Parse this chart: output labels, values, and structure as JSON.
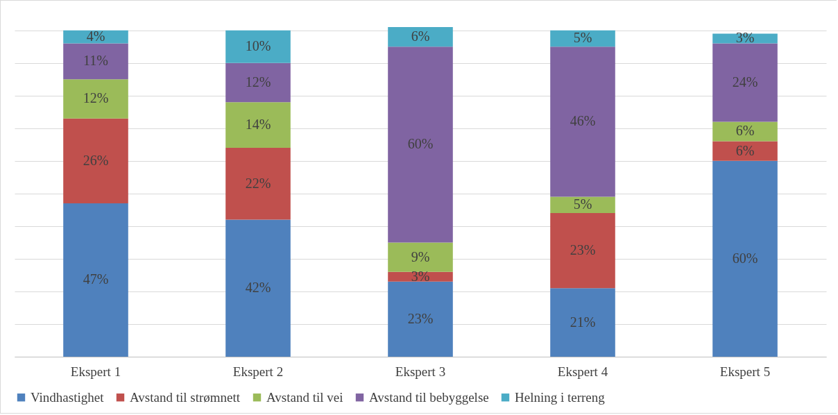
{
  "chart_data": {
    "type": "bar",
    "stacked": true,
    "grid": "y",
    "tick_labels": "x",
    "legend": "bottom",
    "categories": [
      "Ekspert 1",
      "Ekspert 2",
      "Ekspert 3",
      "Ekspert 4",
      "Ekspert 5"
    ],
    "series": [
      {
        "name": "Vindhastighet",
        "color": "#4f81bd",
        "values": [
          47,
          42,
          23,
          21,
          60
        ],
        "value_labels": [
          "47%",
          "42%",
          "23%",
          "21%",
          "60%"
        ]
      },
      {
        "name": "Avstand til strømnett",
        "color": "#c0504d",
        "values": [
          26,
          22,
          3,
          23,
          6
        ],
        "value_labels": [
          "26%",
          "22%",
          "3%",
          "23%",
          "6%"
        ]
      },
      {
        "name": "Avstand til vei",
        "color": "#9bbb59",
        "values": [
          12,
          14,
          9,
          5,
          6
        ],
        "value_labels": [
          "12%",
          "14%",
          "9%",
          "5%",
          "6%"
        ]
      },
      {
        "name": "Avstand til bebyggelse",
        "color": "#8064a2",
        "values": [
          11,
          12,
          60,
          46,
          24
        ],
        "value_labels": [
          "11%",
          "12%",
          "60%",
          "46%",
          "24%"
        ]
      },
      {
        "name": "Helning i terreng",
        "color": "#4bacc6",
        "values": [
          4,
          10,
          6,
          5,
          3
        ],
        "value_labels": [
          "4%",
          "10%",
          "6%",
          "5%",
          "3%"
        ]
      }
    ]
  }
}
